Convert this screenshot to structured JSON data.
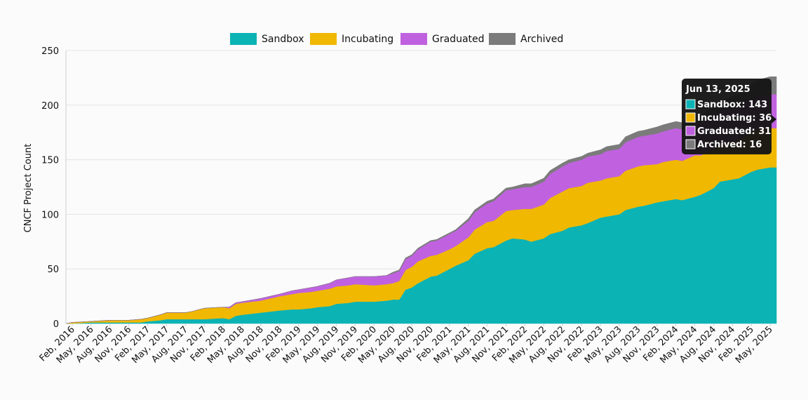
{
  "chart_data": {
    "type": "area",
    "stacked": true,
    "ylabel": "CNCF Project Count",
    "ylim": [
      0,
      250
    ],
    "yticks": [
      0,
      50,
      100,
      150,
      200,
      250
    ],
    "grid": true,
    "legend_position": "top-center",
    "x_tick_labels": [
      "Feb, 2016",
      "May, 2016",
      "Aug, 2016",
      "Nov, 2016",
      "Feb, 2017",
      "May, 2017",
      "Aug, 2017",
      "Nov, 2017",
      "Feb, 2018",
      "May, 2018",
      "Aug, 2018",
      "Nov, 2018",
      "Feb, 2019",
      "May, 2019",
      "Aug, 2019",
      "Nov, 2019",
      "Feb, 2020",
      "May, 2020",
      "Aug, 2020",
      "Nov, 2020",
      "Feb, 2021",
      "May, 2021",
      "Aug, 2021",
      "Nov, 2021",
      "Feb, 2022",
      "May, 2022",
      "Aug, 2022",
      "Nov, 2022",
      "Feb, 2023",
      "May, 2023",
      "Aug, 2023",
      "Nov, 2023",
      "Feb, 2024",
      "May, 2024",
      "Aug, 2024",
      "Nov, 2024",
      "Feb, 2025",
      "May, 2025"
    ],
    "x": [
      "Jan, 2016",
      "Feb, 2016",
      "May, 2016",
      "Aug, 2016",
      "Nov, 2016",
      "Jan, 2017",
      "Feb, 2017",
      "Apr, 2017",
      "May, 2017",
      "Aug, 2017",
      "Sep, 2017",
      "Nov, 2017",
      "Feb, 2018",
      "Mar, 2018",
      "Apr, 2018",
      "May, 2018",
      "Aug, 2018",
      "Nov, 2018",
      "Jan, 2019",
      "Feb, 2019",
      "Apr, 2019",
      "May, 2019",
      "Jul, 2019",
      "Aug, 2019",
      "Oct, 2019",
      "Nov, 2019",
      "Feb, 2020",
      "Apr, 2020",
      "May, 2020",
      "Jun, 2020",
      "Jul, 2020",
      "Aug, 2020",
      "Sep, 2020",
      "Nov, 2020",
      "Dec, 2020",
      "Feb, 2021",
      "Mar, 2021",
      "May, 2021",
      "Jun, 2021",
      "Aug, 2021",
      "Sep, 2021",
      "Nov, 2021",
      "Dec, 2021",
      "Feb, 2022",
      "Mar, 2022",
      "May, 2022",
      "Jun, 2022",
      "Aug, 2022",
      "Sep, 2022",
      "Nov, 2022",
      "Dec, 2022",
      "Feb, 2023",
      "Mar, 2023",
      "May, 2023",
      "Jun, 2023",
      "Aug, 2023",
      "Sep, 2023",
      "Nov, 2023",
      "Dec, 2023",
      "Feb, 2024",
      "Mar, 2024",
      "May, 2024",
      "Jun, 2024",
      "Aug, 2024",
      "Sep, 2024",
      "Nov, 2024",
      "Dec, 2024",
      "Feb, 2025",
      "Mar, 2025",
      "May, 2025",
      "Jun, 2025"
    ],
    "series": [
      {
        "name": "Sandbox",
        "color": "#0bb3b5",
        "values": [
          0,
          0,
          1,
          1,
          1,
          1,
          2,
          3,
          4,
          4,
          4,
          4,
          5,
          4,
          7,
          8,
          10,
          12,
          13,
          13,
          14,
          15,
          16,
          18,
          19,
          20,
          20,
          21,
          22,
          22,
          31,
          33,
          37,
          43,
          44,
          50,
          53,
          58,
          64,
          69,
          70,
          76,
          78,
          77,
          75,
          78,
          82,
          85,
          88,
          90,
          92,
          97,
          98,
          100,
          104,
          107,
          108,
          111,
          112,
          114,
          113,
          116,
          118,
          124,
          130,
          132,
          133,
          139,
          141,
          143,
          143
        ]
      },
      {
        "name": "Incubating",
        "color": "#f0b800",
        "values": [
          0,
          1,
          1,
          2,
          2,
          3,
          3,
          5,
          6,
          6,
          7,
          10,
          10,
          10,
          11,
          11,
          11,
          13,
          14,
          15,
          15,
          15,
          16,
          16,
          16,
          16,
          15,
          15,
          15,
          17,
          18,
          19,
          20,
          19,
          19,
          18,
          18,
          21,
          22,
          24,
          24,
          27,
          26,
          28,
          30,
          31,
          33,
          36,
          36,
          36,
          37,
          34,
          35,
          35,
          36,
          37,
          37,
          35,
          36,
          36,
          36,
          38,
          36,
          36,
          34,
          35,
          35,
          36,
          37,
          36,
          36
        ]
      },
      {
        "name": "Graduated",
        "color": "#c062e0",
        "values": [
          0,
          0,
          0,
          0,
          0,
          0,
          0,
          0,
          0,
          0,
          0,
          0,
          0,
          1,
          1,
          1,
          2,
          2,
          3,
          3,
          4,
          4,
          5,
          6,
          7,
          7,
          8,
          8,
          9,
          9,
          10,
          10,
          11,
          13,
          13,
          14,
          14,
          15,
          16,
          17,
          18,
          19,
          19,
          20,
          20,
          21,
          22,
          23,
          23,
          24,
          24,
          24,
          25,
          25,
          26,
          27,
          27,
          28,
          28,
          29,
          29,
          30,
          30,
          30,
          30,
          31,
          31,
          31,
          31,
          31,
          31
        ]
      },
      {
        "name": "Archived",
        "color": "#7b7b7b",
        "values": [
          0,
          0,
          0,
          0,
          0,
          0,
          0,
          0,
          0,
          0,
          0,
          0,
          0,
          0,
          0,
          0,
          0,
          0,
          0,
          0,
          0,
          0,
          0,
          0,
          0,
          0,
          0,
          0,
          1,
          1,
          1,
          1,
          1,
          1,
          1,
          1,
          1,
          2,
          2,
          2,
          2,
          2,
          2,
          3,
          3,
          3,
          3,
          3,
          3,
          3,
          3,
          4,
          4,
          4,
          5,
          5,
          5,
          6,
          6,
          6,
          6,
          7,
          7,
          8,
          9,
          10,
          10,
          12,
          14,
          16,
          16
        ]
      }
    ],
    "tooltip": {
      "title": "Jun 13, 2025",
      "rows": [
        {
          "series": "Sandbox",
          "label": "Sandbox: 143",
          "color": "#0bb3b5"
        },
        {
          "series": "Incubating",
          "label": "Incubating: 36",
          "color": "#f0b800"
        },
        {
          "series": "Graduated",
          "label": "Graduated: 31",
          "color": "#c062e0"
        },
        {
          "series": "Archived",
          "label": "Archived: 16",
          "color": "#7b7b7b"
        }
      ]
    }
  }
}
